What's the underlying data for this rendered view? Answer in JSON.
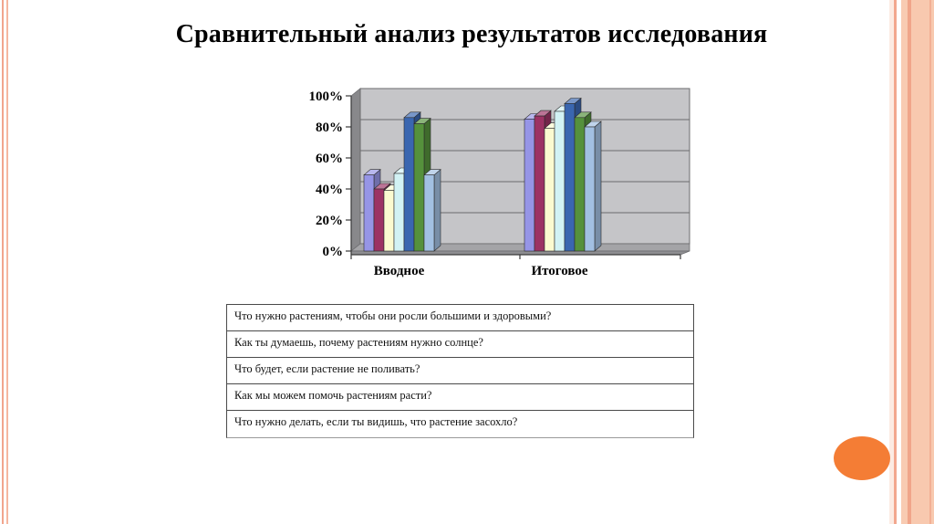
{
  "slide": {
    "title": "Сравнительный анализ результатов исследования"
  },
  "chart_data": {
    "type": "bar",
    "style": "3d-column",
    "title": "",
    "xlabel": "",
    "ylabel": "",
    "ylim": [
      0,
      100
    ],
    "grid": true,
    "legend": "none",
    "categories": [
      "Вводное",
      "Итоговое"
    ],
    "yticks": [
      "0%",
      "20%",
      "40%",
      "60%",
      "80%",
      "100%"
    ],
    "series": [
      {
        "color": "#9695E6",
        "values": [
          49,
          85
        ]
      },
      {
        "color": "#9C3264",
        "values": [
          40,
          87
        ]
      },
      {
        "color": "#FBFAD0",
        "values": [
          39,
          79
        ]
      },
      {
        "color": "#D2F2F4",
        "values": [
          50,
          90
        ]
      },
      {
        "color": "#3A66B0",
        "values": [
          86,
          95
        ]
      },
      {
        "color": "#55913C",
        "values": [
          82,
          86
        ]
      },
      {
        "color": "#A2C0E2",
        "values": [
          49,
          80
        ]
      }
    ],
    "colors": {
      "back_wall": "#C5C5C8",
      "left_wall": "#88888B",
      "floor_top": "#A4A4A7",
      "floor_front": "#8E8E91",
      "gridline": "#6B6B6E",
      "axis": "#3A3A3A",
      "bar_outline": "#2B2B2B"
    }
  },
  "questions": [
    "Что нужно растениям, чтобы они росли большими и здоровыми?",
    "Как ты думаешь, почему растениям нужно солнце?",
    "Что будет, если растение не поливать?",
    "Как мы можем помочь растениям расти?",
    "Что нужно делать, если ты видишь, что растение засохло?"
  ],
  "decor": {
    "accent_orange": "#F47D35",
    "edge_salmon": "#F2A78F",
    "edge_peach": "#F8C9AF"
  }
}
